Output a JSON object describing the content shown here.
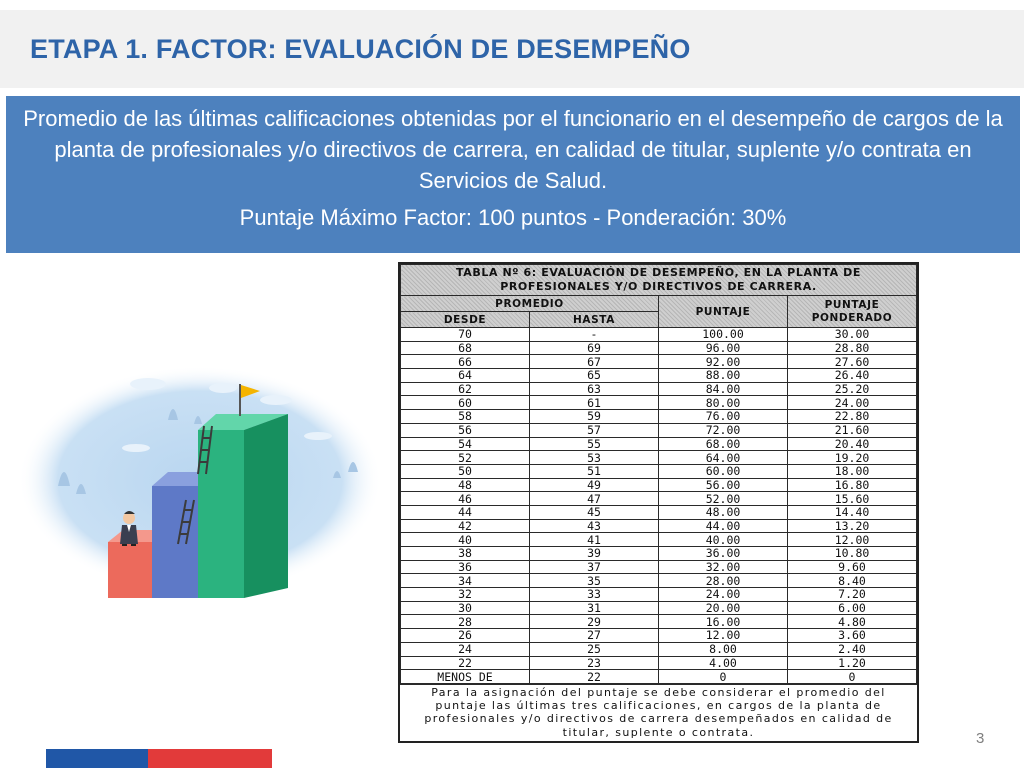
{
  "slide": {
    "title": "ETAPA 1. FACTOR: EVALUACIÓN DE DESEMPEÑO",
    "description": "Promedio de las últimas calificaciones obtenidas por el funcionario en el desempeño de cargos de la planta de profesionales y/o directivos de carrera, en calidad de titular, suplente y/o contrata en Servicios de Salud.",
    "score_line": "Puntaje Máximo Factor: 100 puntos - Ponderación: 30%",
    "page_number": "3"
  },
  "colors": {
    "title": "#2e64a8",
    "box": "#4d81be",
    "footer_blue": "#2057a7",
    "footer_red": "#e23a3a"
  },
  "illustration": {
    "icons": [
      "staircase-bars",
      "flag-icon",
      "ladder-icon",
      "businessman-figure",
      "clouds",
      "plants"
    ]
  },
  "table": {
    "caption": "TABLA Nº 6: EVALUACIÓN DE DESEMPEÑO, EN LA PLANTA DE PROFESIONALES Y/O DIRECTIVOS DE CARRERA.",
    "group_header": "PROMEDIO",
    "col_desde": "DESDE",
    "col_hasta": "HASTA",
    "col_puntaje": "PUNTAJE",
    "col_ponderado": "PUNTAJE PONDERADO",
    "rows": [
      [
        "70",
        "-",
        "100.00",
        "30.00"
      ],
      [
        "68",
        "69",
        "96.00",
        "28.80"
      ],
      [
        "66",
        "67",
        "92.00",
        "27.60"
      ],
      [
        "64",
        "65",
        "88.00",
        "26.40"
      ],
      [
        "62",
        "63",
        "84.00",
        "25.20"
      ],
      [
        "60",
        "61",
        "80.00",
        "24.00"
      ],
      [
        "58",
        "59",
        "76.00",
        "22.80"
      ],
      [
        "56",
        "57",
        "72.00",
        "21.60"
      ],
      [
        "54",
        "55",
        "68.00",
        "20.40"
      ],
      [
        "52",
        "53",
        "64.00",
        "19.20"
      ],
      [
        "50",
        "51",
        "60.00",
        "18.00"
      ],
      [
        "48",
        "49",
        "56.00",
        "16.80"
      ],
      [
        "46",
        "47",
        "52.00",
        "15.60"
      ],
      [
        "44",
        "45",
        "48.00",
        "14.40"
      ],
      [
        "42",
        "43",
        "44.00",
        "13.20"
      ],
      [
        "40",
        "41",
        "40.00",
        "12.00"
      ],
      [
        "38",
        "39",
        "36.00",
        "10.80"
      ],
      [
        "36",
        "37",
        "32.00",
        "9.60"
      ],
      [
        "34",
        "35",
        "28.00",
        "8.40"
      ],
      [
        "32",
        "33",
        "24.00",
        "7.20"
      ],
      [
        "30",
        "31",
        "20.00",
        "6.00"
      ],
      [
        "28",
        "29",
        "16.00",
        "4.80"
      ],
      [
        "26",
        "27",
        "12.00",
        "3.60"
      ],
      [
        "24",
        "25",
        "8.00",
        "2.40"
      ],
      [
        "22",
        "23",
        "4.00",
        "1.20"
      ],
      [
        "MENOS DE",
        "22",
        "0",
        "0"
      ]
    ],
    "note": "Para la asignación del puntaje se debe considerar el promedio del puntaje las últimas tres calificaciones, en cargos de la planta de profesionales y/o directivos de carrera desempeñados en calidad de titular, suplente o contrata."
  }
}
